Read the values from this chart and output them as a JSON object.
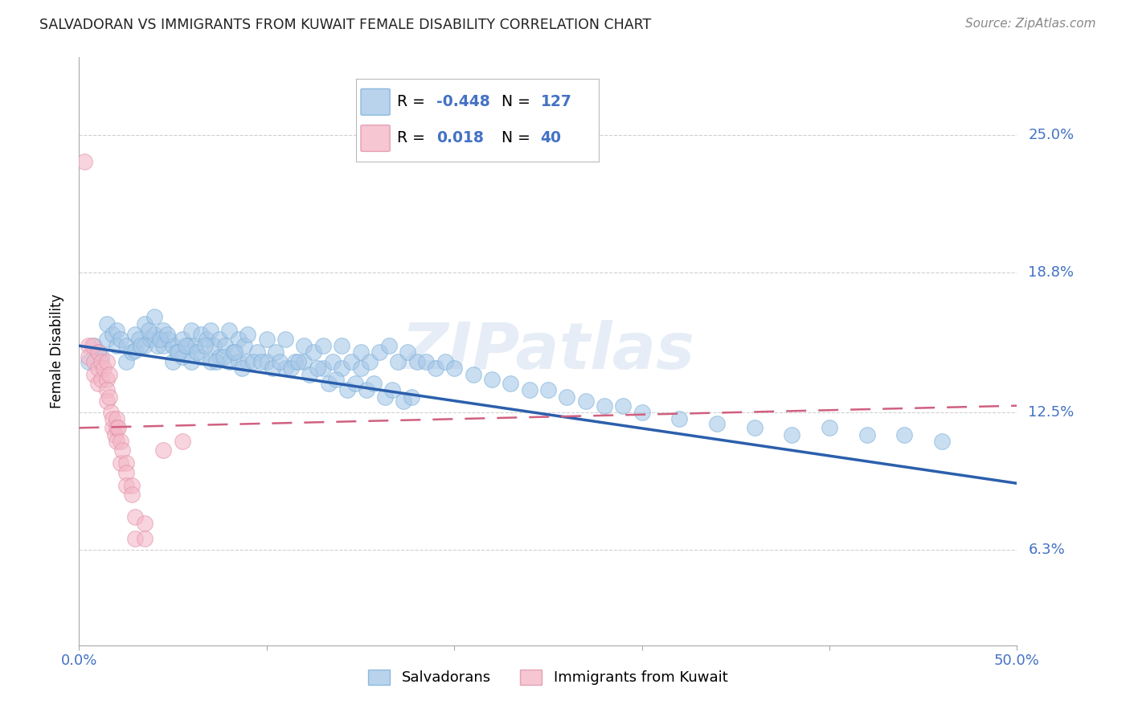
{
  "title": "SALVADORAN VS IMMIGRANTS FROM KUWAIT FEMALE DISABILITY CORRELATION CHART",
  "source": "Source: ZipAtlas.com",
  "ylabel": "Female Disability",
  "ytick_labels": [
    "25.0%",
    "18.8%",
    "12.5%",
    "6.3%"
  ],
  "ytick_values": [
    0.25,
    0.188,
    0.125,
    0.063
  ],
  "xmin": 0.0,
  "xmax": 0.5,
  "ymin": 0.02,
  "ymax": 0.285,
  "legend_blue_R": "-0.448",
  "legend_blue_N": "127",
  "legend_pink_R": "0.018",
  "legend_pink_N": "40",
  "blue_color": "#a8c8e8",
  "pink_color": "#f4b8c8",
  "blue_line_color": "#2b5fac",
  "pink_line_color": "#d06080",
  "title_color": "#222222",
  "axis_label_color": "#4472c4",
  "grid_color": "#d0d0d0",
  "watermark_color": "#c8d8ec",
  "blue_scatter_x": [
    0.005,
    0.008,
    0.01,
    0.012,
    0.015,
    0.015,
    0.018,
    0.02,
    0.02,
    0.022,
    0.025,
    0.025,
    0.028,
    0.03,
    0.03,
    0.032,
    0.035,
    0.035,
    0.038,
    0.04,
    0.04,
    0.042,
    0.045,
    0.045,
    0.048,
    0.05,
    0.05,
    0.052,
    0.055,
    0.055,
    0.058,
    0.06,
    0.06,
    0.062,
    0.065,
    0.065,
    0.068,
    0.07,
    0.07,
    0.072,
    0.075,
    0.075,
    0.078,
    0.08,
    0.08,
    0.082,
    0.085,
    0.085,
    0.088,
    0.09,
    0.09,
    0.095,
    0.1,
    0.1,
    0.105,
    0.11,
    0.11,
    0.115,
    0.12,
    0.12,
    0.125,
    0.13,
    0.13,
    0.135,
    0.14,
    0.14,
    0.145,
    0.15,
    0.15,
    0.155,
    0.16,
    0.165,
    0.17,
    0.175,
    0.18,
    0.185,
    0.19,
    0.195,
    0.2,
    0.21,
    0.22,
    0.23,
    0.24,
    0.25,
    0.26,
    0.27,
    0.28,
    0.29,
    0.3,
    0.32,
    0.34,
    0.36,
    0.38,
    0.4,
    0.42,
    0.44,
    0.46,
    0.033,
    0.037,
    0.043,
    0.047,
    0.053,
    0.057,
    0.063,
    0.067,
    0.073,
    0.077,
    0.083,
    0.087,
    0.093,
    0.097,
    0.103,
    0.107,
    0.113,
    0.117,
    0.123,
    0.127,
    0.133,
    0.137,
    0.143,
    0.147,
    0.153,
    0.157,
    0.163,
    0.167,
    0.173,
    0.177
  ],
  "blue_scatter_y": [
    0.148,
    0.155,
    0.152,
    0.15,
    0.165,
    0.158,
    0.16,
    0.162,
    0.155,
    0.158,
    0.155,
    0.148,
    0.152,
    0.16,
    0.153,
    0.158,
    0.165,
    0.155,
    0.158,
    0.168,
    0.16,
    0.155,
    0.162,
    0.155,
    0.158,
    0.155,
    0.148,
    0.152,
    0.158,
    0.15,
    0.155,
    0.162,
    0.148,
    0.155,
    0.16,
    0.15,
    0.158,
    0.162,
    0.148,
    0.155,
    0.158,
    0.15,
    0.155,
    0.162,
    0.148,
    0.152,
    0.158,
    0.148,
    0.155,
    0.16,
    0.148,
    0.152,
    0.158,
    0.148,
    0.152,
    0.158,
    0.145,
    0.148,
    0.155,
    0.148,
    0.152,
    0.155,
    0.145,
    0.148,
    0.155,
    0.145,
    0.148,
    0.152,
    0.145,
    0.148,
    0.152,
    0.155,
    0.148,
    0.152,
    0.148,
    0.148,
    0.145,
    0.148,
    0.145,
    0.142,
    0.14,
    0.138,
    0.135,
    0.135,
    0.132,
    0.13,
    0.128,
    0.128,
    0.125,
    0.122,
    0.12,
    0.118,
    0.115,
    0.118,
    0.115,
    0.115,
    0.112,
    0.155,
    0.162,
    0.158,
    0.16,
    0.152,
    0.155,
    0.152,
    0.155,
    0.148,
    0.15,
    0.152,
    0.145,
    0.148,
    0.148,
    0.145,
    0.148,
    0.145,
    0.148,
    0.142,
    0.145,
    0.138,
    0.14,
    0.135,
    0.138,
    0.135,
    0.138,
    0.132,
    0.135,
    0.13,
    0.132
  ],
  "pink_scatter_x": [
    0.003,
    0.005,
    0.005,
    0.007,
    0.008,
    0.008,
    0.01,
    0.01,
    0.01,
    0.012,
    0.012,
    0.013,
    0.015,
    0.015,
    0.015,
    0.015,
    0.016,
    0.016,
    0.017,
    0.018,
    0.018,
    0.019,
    0.02,
    0.02,
    0.02,
    0.021,
    0.022,
    0.022,
    0.023,
    0.025,
    0.025,
    0.025,
    0.028,
    0.028,
    0.03,
    0.03,
    0.035,
    0.035,
    0.045,
    0.055
  ],
  "pink_scatter_y": [
    0.238,
    0.155,
    0.15,
    0.155,
    0.148,
    0.142,
    0.152,
    0.145,
    0.138,
    0.148,
    0.14,
    0.145,
    0.148,
    0.14,
    0.135,
    0.13,
    0.142,
    0.132,
    0.125,
    0.118,
    0.122,
    0.115,
    0.122,
    0.118,
    0.112,
    0.118,
    0.112,
    0.102,
    0.108,
    0.102,
    0.098,
    0.092,
    0.092,
    0.088,
    0.078,
    0.068,
    0.075,
    0.068,
    0.108,
    0.112
  ]
}
